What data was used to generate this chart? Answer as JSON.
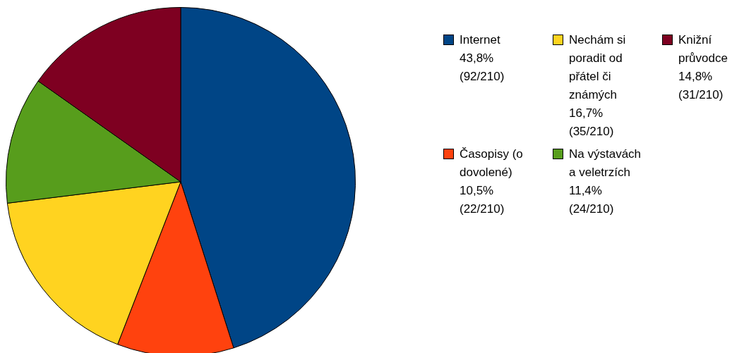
{
  "chart_data": {
    "type": "pie",
    "categories": [
      "Internet",
      "Časopisy (o dovolené)",
      "Nechám si poradit od přátel či známých",
      "Na výstavách a veletrzích",
      "Knižní průvodce"
    ],
    "values": [
      92,
      22,
      35,
      24,
      31
    ],
    "value_labels": [
      "43,8% (92/210)",
      "10,5% (22/210)",
      "16,7% (35/210)",
      "11,4% (24/210)",
      "14,8% (31/210)"
    ],
    "colors": [
      "#004586",
      "#ff420e",
      "#ffd320",
      "#579d1c",
      "#7e0021"
    ],
    "legend": "right"
  }
}
